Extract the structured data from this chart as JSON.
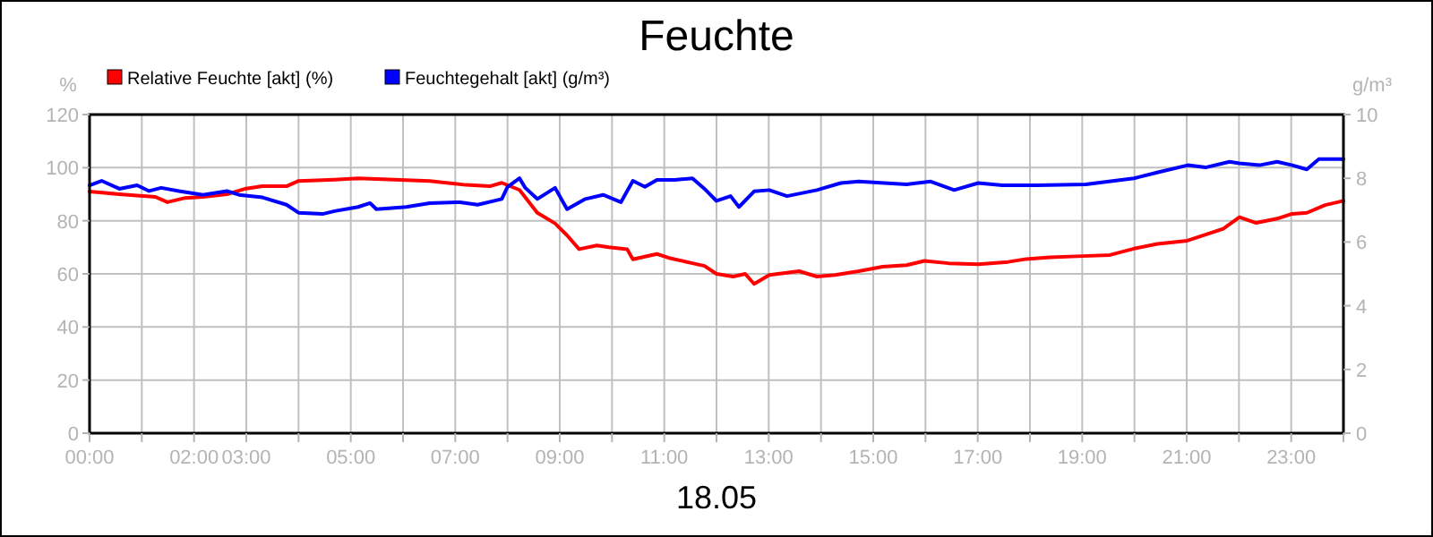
{
  "chart_data": {
    "type": "line",
    "title": "Feuchte",
    "xlabel": "18.05",
    "ylabel": "%",
    "y2label": "g/m³",
    "legend": "top",
    "grid": true,
    "line_style": "solid",
    "marker": "none",
    "xlim": [
      0,
      24
    ],
    "xticks": [
      {
        "value": 0,
        "label": "00:00"
      },
      {
        "value": 1,
        "label": null
      },
      {
        "value": 2,
        "label": "02:00"
      },
      {
        "value": 3,
        "label": "03:00"
      },
      {
        "value": 4,
        "label": null
      },
      {
        "value": 5,
        "label": "05:00"
      },
      {
        "value": 6,
        "label": null
      },
      {
        "value": 7,
        "label": "07:00"
      },
      {
        "value": 8,
        "label": null
      },
      {
        "value": 9,
        "label": "09:00"
      },
      {
        "value": 10,
        "label": null
      },
      {
        "value": 11,
        "label": "11:00"
      },
      {
        "value": 12,
        "label": null
      },
      {
        "value": 13,
        "label": "13:00"
      },
      {
        "value": 14,
        "label": null
      },
      {
        "value": 15,
        "label": "15:00"
      },
      {
        "value": 16,
        "label": null
      },
      {
        "value": 17,
        "label": "17:00"
      },
      {
        "value": 18,
        "label": null
      },
      {
        "value": 19,
        "label": "19:00"
      },
      {
        "value": 20,
        "label": null
      },
      {
        "value": 21,
        "label": "21:00"
      },
      {
        "value": 22,
        "label": null
      },
      {
        "value": 23,
        "label": "23:00"
      },
      {
        "value": 24,
        "label": null
      }
    ],
    "ylim": [
      0,
      120
    ],
    "yticks": [
      0,
      20,
      40,
      60,
      80,
      100,
      120
    ],
    "y2lim": [
      0,
      10
    ],
    "y2ticks": [
      0,
      2,
      4,
      6,
      8,
      10
    ],
    "series": [
      {
        "name": "Relative Feuchte [akt] (%)",
        "color": "#ff0000",
        "x": [
          0,
          0.57,
          0.91,
          1.26,
          1.49,
          1.83,
          2.17,
          2.63,
          2.97,
          3.31,
          3.77,
          4.0,
          4.69,
          5.14,
          5.83,
          6.51,
          7.2,
          7.66,
          7.89,
          8.23,
          8.57,
          8.91,
          9.14,
          9.37,
          9.71,
          9.94,
          10.29,
          10.4,
          10.86,
          11.09,
          11.54,
          11.77,
          12.0,
          12.32,
          12.55,
          12.72,
          13.01,
          13.58,
          13.92,
          14.27,
          14.72,
          15.18,
          15.64,
          15.98,
          16.44,
          17.01,
          17.58,
          17.93,
          18.38,
          19.01,
          19.53,
          19.99,
          20.44,
          21.01,
          21.35,
          21.7,
          22.01,
          22.33,
          22.73,
          23.02,
          23.3,
          23.65,
          24
        ],
        "values": [
          91,
          90,
          89.5,
          89,
          87,
          88.6,
          89,
          90,
          92,
          93,
          93,
          95,
          95.5,
          96,
          95.5,
          95,
          93.5,
          93,
          94.3,
          91.6,
          83,
          79,
          74.5,
          69.3,
          70.7,
          70,
          69.3,
          65.5,
          67.5,
          66,
          64,
          63,
          60,
          59,
          60,
          56.2,
          59.6,
          61,
          59,
          59.6,
          61,
          62.7,
          63.3,
          64.9,
          64,
          63.6,
          64.5,
          65.6,
          66.2,
          66.7,
          67.1,
          69.5,
          71.3,
          72.5,
          74.7,
          77,
          81.4,
          79.2,
          80.8,
          82.6,
          83,
          85.9,
          87.5
        ]
      },
      {
        "name": "Feuchtegehalt [akt] (g/m³)",
        "color": "#0000ff",
        "axis": "y2",
        "x": [
          0,
          0.23,
          0.57,
          0.91,
          1.14,
          1.37,
          1.71,
          2.17,
          2.63,
          2.86,
          3.31,
          3.77,
          4.0,
          4.46,
          4.69,
          5.14,
          5.37,
          5.49,
          6.06,
          6.51,
          7.09,
          7.43,
          7.89,
          8.0,
          8.23,
          8.34,
          8.57,
          8.91,
          9.14,
          9.49,
          9.83,
          10.17,
          10.4,
          10.63,
          10.86,
          11.2,
          11.54,
          11.77,
          12.0,
          12.27,
          12.43,
          12.72,
          13.01,
          13.35,
          13.92,
          14.38,
          14.72,
          15.64,
          16.1,
          16.55,
          17.01,
          17.47,
          18.15,
          19.07,
          19.99,
          20.45,
          21.02,
          21.36,
          21.82,
          22.01,
          22.39,
          22.73,
          23.02,
          23.3,
          23.53,
          24
        ],
        "values": [
          7.78,
          7.92,
          7.67,
          7.78,
          7.6,
          7.7,
          7.6,
          7.48,
          7.6,
          7.48,
          7.4,
          7.17,
          6.92,
          6.88,
          6.97,
          7.1,
          7.22,
          7.03,
          7.1,
          7.22,
          7.25,
          7.17,
          7.35,
          7.73,
          8.0,
          7.7,
          7.35,
          7.7,
          7.03,
          7.35,
          7.48,
          7.25,
          7.92,
          7.73,
          7.95,
          7.95,
          8.0,
          7.67,
          7.29,
          7.44,
          7.1,
          7.59,
          7.63,
          7.44,
          7.63,
          7.85,
          7.9,
          7.81,
          7.9,
          7.63,
          7.85,
          7.78,
          7.78,
          7.81,
          8.0,
          8.19,
          8.41,
          8.34,
          8.52,
          8.47,
          8.41,
          8.52,
          8.41,
          8.28,
          8.6,
          8.6
        ]
      }
    ]
  }
}
